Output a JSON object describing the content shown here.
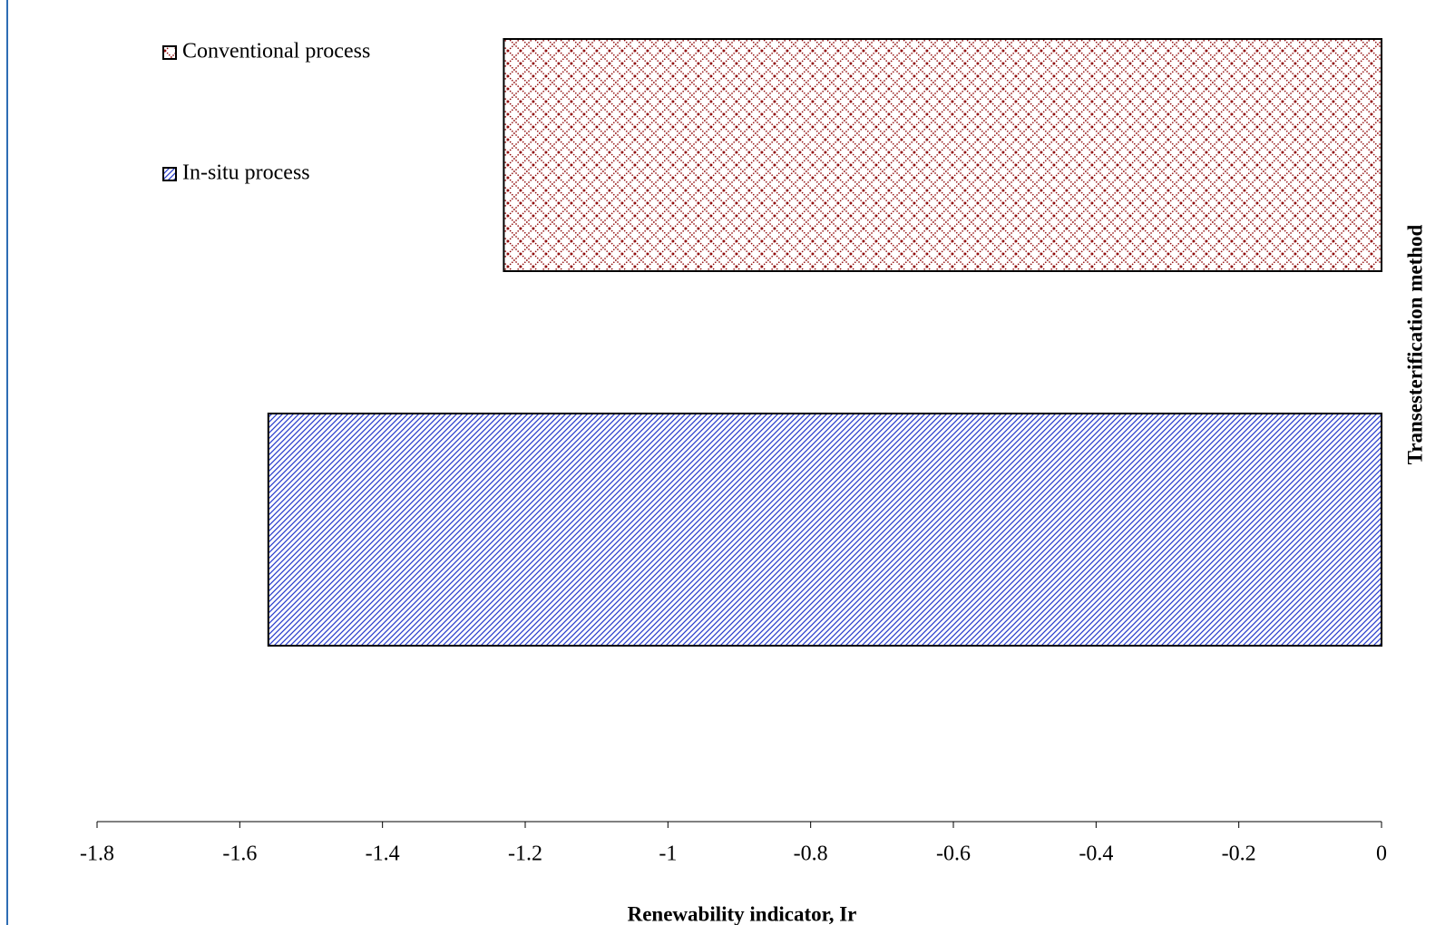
{
  "chart_data": {
    "type": "bar",
    "orientation": "horizontal",
    "x_label": "Renewability indicator, Ir",
    "y_label": "Transesterification method",
    "series": [
      {
        "name": "Conventional process",
        "color": "#8b0000",
        "pattern": "crosshatch",
        "values": [
          -1.23
        ]
      },
      {
        "name": "In-situ process",
        "color": "#2b3fcc",
        "pattern": "diagonal",
        "values": [
          -1.56
        ]
      }
    ],
    "xlim": [
      -1.8,
      0
    ],
    "xticks": [
      -1.8,
      -1.6,
      -1.4,
      -1.2,
      -1,
      -0.8,
      -0.6,
      -0.4,
      -0.2,
      0
    ],
    "legend": "top-left"
  }
}
